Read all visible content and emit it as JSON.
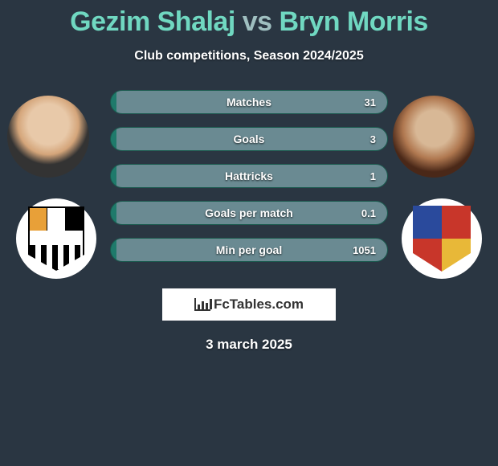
{
  "background_color": "#2a3642",
  "title": {
    "player1": "Gezim Shalaj",
    "vs": "vs",
    "player2": "Bryn Morris",
    "player_color": "#70d8c1",
    "vs_color": "#9fbfc0",
    "fontsize": 34
  },
  "subtitle": {
    "text": "Club competitions, Season 2024/2025",
    "color": "#ffffff",
    "fontsize": 16
  },
  "stats": {
    "bar_bg_left": "#1f7a6b",
    "bar_bg_right": "#6a8a92",
    "bar_border": "#1a5a4e",
    "text_color": "#ffffff",
    "label_fontsize": 14,
    "value_fontsize": 13,
    "rows": [
      {
        "label": "Matches",
        "value": "31"
      },
      {
        "label": "Goals",
        "value": "3"
      },
      {
        "label": "Hattricks",
        "value": "1"
      },
      {
        "label": "Goals per match",
        "value": "0.1"
      },
      {
        "label": "Min per goal",
        "value": "1051"
      }
    ]
  },
  "branding": {
    "site": "FcTables.com",
    "box_bg": "#ffffff",
    "text_color": "#333333"
  },
  "date": {
    "text": "3 march 2025",
    "color": "#ffffff",
    "fontsize": 17
  },
  "badges": {
    "left": {
      "name": "Port Vale FC",
      "colors": [
        "#000000",
        "#ffffff",
        "#e8a038"
      ]
    },
    "right": {
      "name": "Club Crest",
      "colors": [
        "#2a4a9c",
        "#c8362a",
        "#e8b838"
      ]
    }
  }
}
